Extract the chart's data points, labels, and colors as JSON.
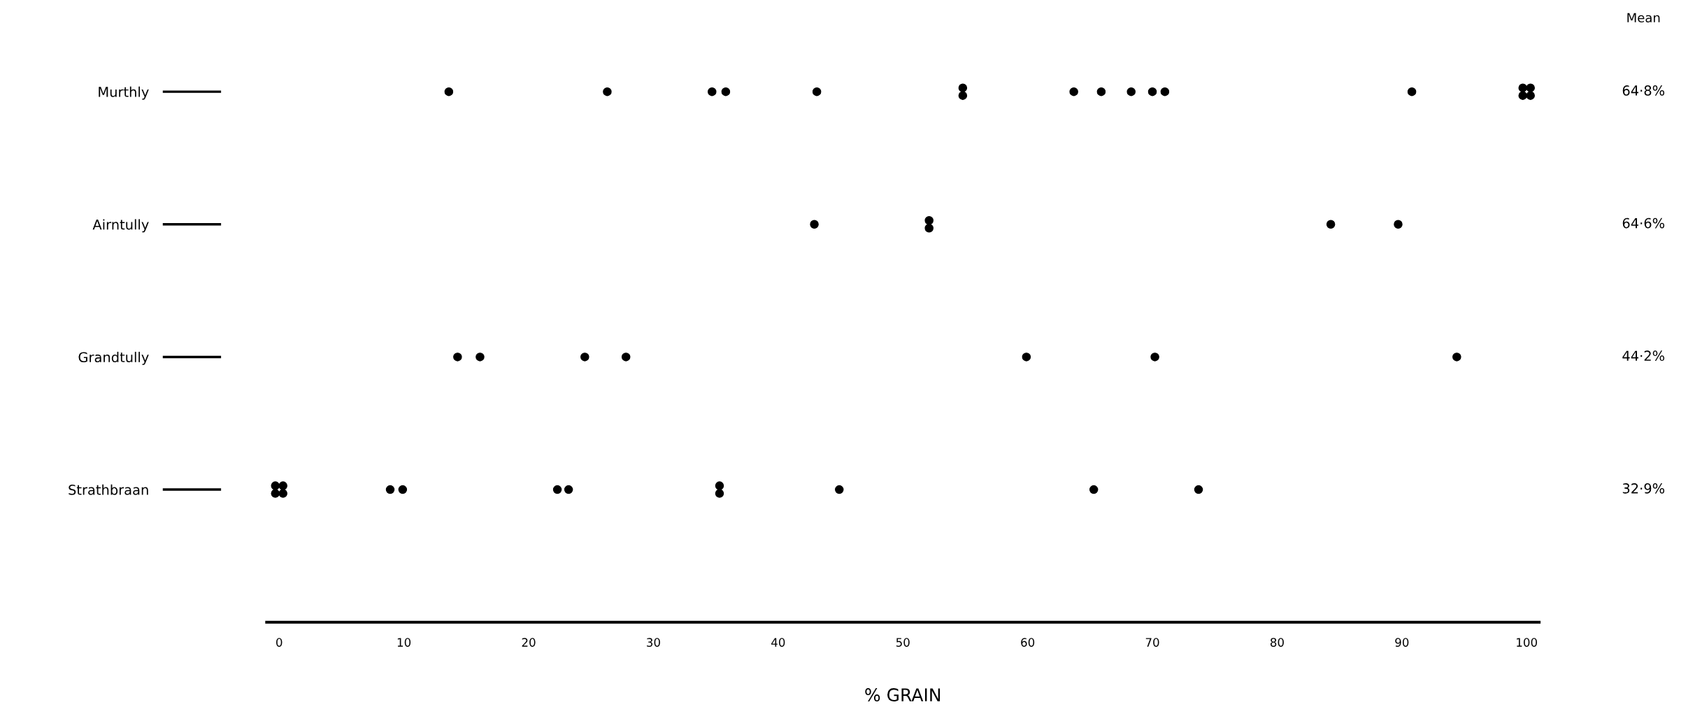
{
  "chart_data": {
    "type": "scatter",
    "orientation": "horizontal",
    "categories": [
      "Murthly",
      "Airntully",
      "Grandtully",
      "Strathbraan"
    ],
    "series": [
      {
        "color": "#000000",
        "x": [
          "Murthly",
          "Murthly",
          "Murthly",
          "Murthly",
          "Murthly",
          "Murthly",
          "Murthly",
          "Murthly",
          "Murthly",
          "Murthly",
          "Murthly",
          "Murthly",
          "Murthly",
          "Murthly",
          "Murthly",
          "Murthly",
          "Murthly"
        ],
        "values": [
          13.6,
          26.3,
          34.7,
          35.8,
          43.1,
          54.8,
          54.8,
          63.7,
          65.9,
          68.3,
          70.0,
          71.0,
          90.8,
          100,
          100,
          100,
          100
        ]
      },
      {
        "color": "#000000",
        "x": [
          "Airntully",
          "Airntully",
          "Airntully",
          "Airntully",
          "Airntully"
        ],
        "values": [
          42.9,
          52.1,
          52.1,
          84.3,
          89.7
        ]
      },
      {
        "color": "#000000",
        "x": [
          "Grandtully",
          "Grandtully",
          "Grandtully",
          "Grandtully",
          "Grandtully",
          "Grandtully",
          "Grandtully"
        ],
        "values": [
          14.3,
          16.1,
          24.5,
          27.8,
          59.9,
          70.2,
          94.4
        ]
      },
      {
        "color": "#000000",
        "x": [
          "Strathbraan",
          "Strathbraan",
          "Strathbraan",
          "Strathbraan",
          "Strathbraan",
          "Strathbraan",
          "Strathbraan",
          "Strathbraan",
          "Strathbraan",
          "Strathbraan",
          "Strathbraan",
          "Strathbraan",
          "Strathbraan"
        ],
        "values": [
          0,
          0,
          0,
          0,
          8.9,
          9.9,
          22.3,
          23.2,
          35.3,
          35.3,
          44.9,
          65.3,
          73.7
        ]
      }
    ],
    "marker": "circle",
    "annotations": [
      "Mean",
      "64·8%",
      "64·6%",
      "44·2%",
      "32·9%"
    ],
    "xlabel": "% GRAIN",
    "xlim": [
      -1,
      101
    ],
    "xticks": [
      0,
      10,
      20,
      30,
      40,
      50,
      60,
      70,
      80,
      90,
      100
    ],
    "grid": false
  }
}
